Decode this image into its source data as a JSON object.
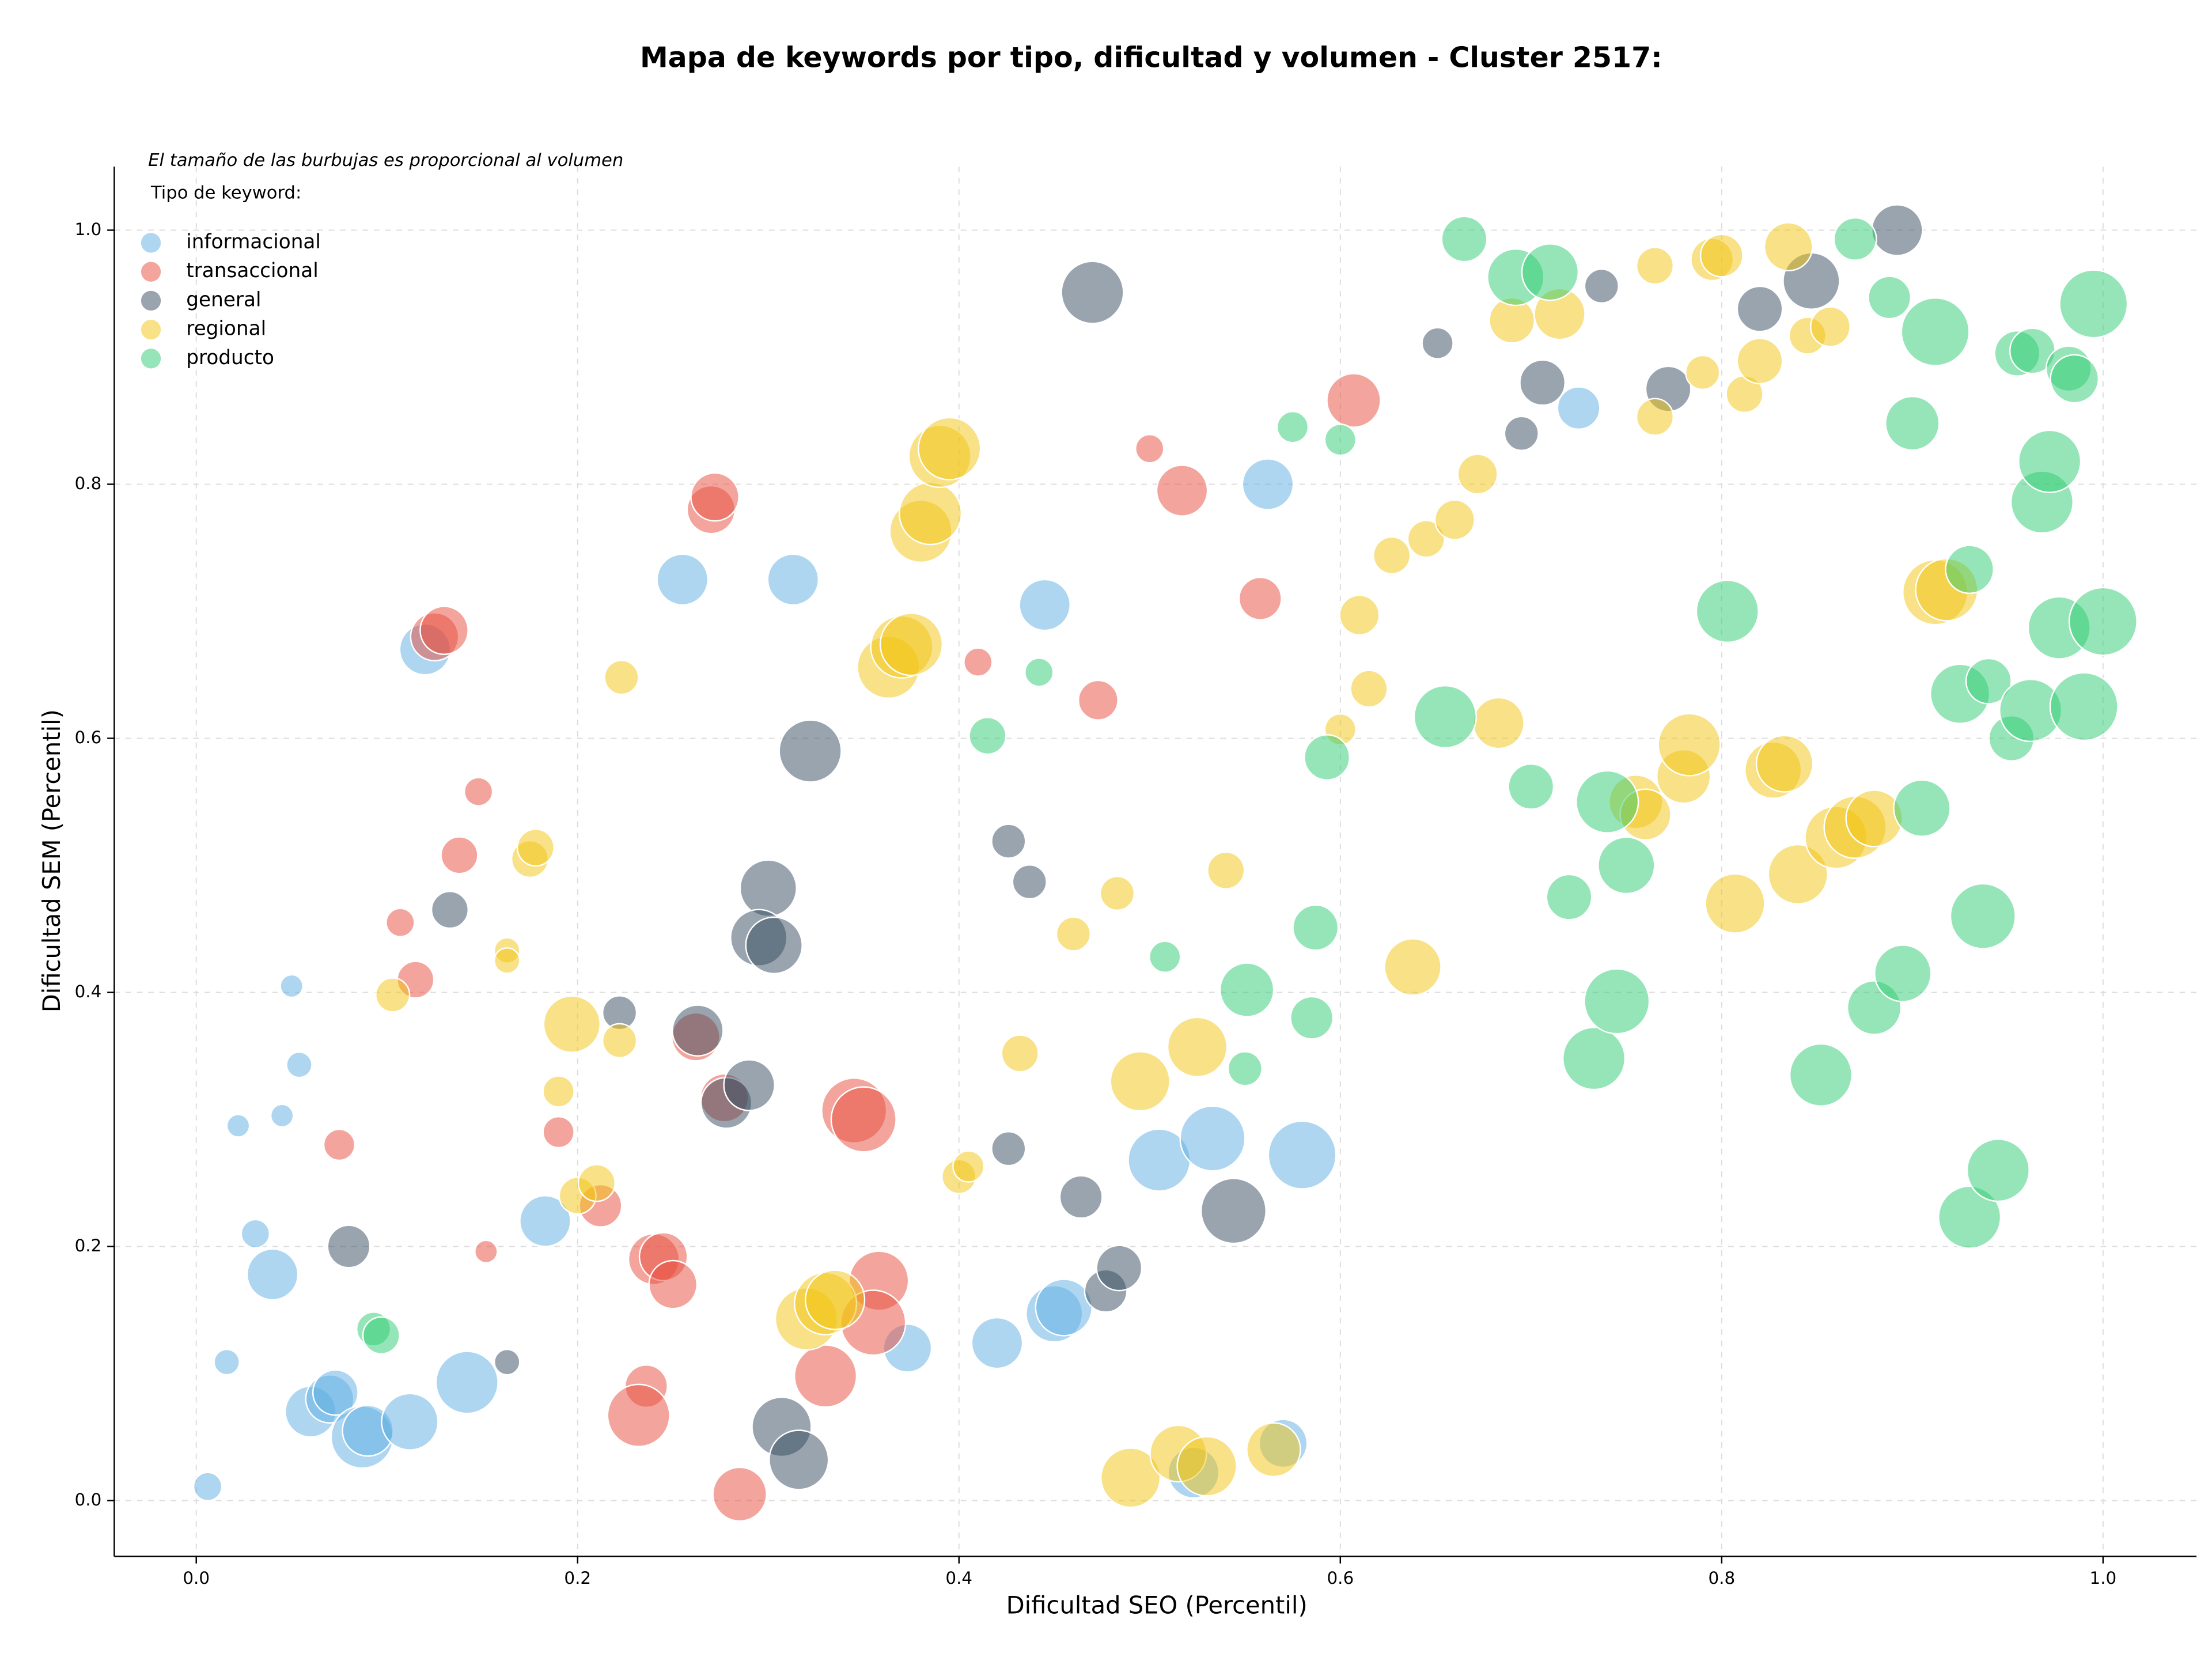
{
  "chart_data": {
    "type": "scatter",
    "title": "Mapa de keywords por tipo, dificultad y volumen - Cluster 2517:",
    "annotation": "El tamaño de las burbujas es proporcional al volumen",
    "legend_title": "Tipo de keyword:",
    "legend": "upper left",
    "x_label": "Dificultad SEO (Percentil)",
    "y_label": "Dificultad SEM (Percentil)",
    "xlim": [
      -0.043,
      1.049
    ],
    "ylim": [
      -0.044,
      1.05
    ],
    "xticks": [
      {
        "value": 0,
        "label": "0.0"
      },
      0.2,
      0.4,
      0.6,
      0.8,
      {
        "value": 1,
        "label": "1.0"
      }
    ],
    "yticks": [
      {
        "value": 0,
        "label": "0.0"
      },
      0.2,
      0.4,
      0.6,
      0.8,
      {
        "value": 1,
        "label": "1.0"
      }
    ],
    "grid": true,
    "series": [
      {
        "name": "informacional",
        "color": "#5dade2",
        "x": [
          0.12,
          0.255,
          0.313,
          0.445,
          0.562,
          0.725,
          0.05,
          0.054,
          0.022,
          0.045,
          0.031,
          0.016,
          0.006,
          0.04,
          0.183,
          0.06,
          0.07,
          0.073,
          0.087,
          0.09,
          0.112,
          0.142,
          0.373,
          0.42,
          0.45,
          0.455,
          0.505,
          0.533,
          0.58,
          0.523,
          0.57
        ],
        "values": [
          0.67,
          0.725,
          0.725,
          0.705,
          0.8,
          0.86,
          0.405,
          0.343,
          0.295,
          0.303,
          0.21,
          0.109,
          0.011,
          0.178,
          0.22,
          0.07,
          0.08,
          0.085,
          0.05,
          0.055,
          0.062,
          0.093,
          0.12,
          0.124,
          0.147,
          0.152,
          0.268,
          0.285,
          0.272,
          0.022,
          0.045
        ],
        "sizes": [
          324,
          324,
          324,
          324,
          324,
          225,
          64,
          81,
          64,
          64,
          100,
          81,
          100,
          324,
          324,
          324,
          289,
          256,
          484,
          324,
          400,
          484,
          289,
          324,
          400,
          400,
          484,
          529,
          576,
          324,
          289
        ]
      },
      {
        "name": "transaccional",
        "color": "#e74c3c",
        "x": [
          0.125,
          0.13,
          0.148,
          0.138,
          0.107,
          0.115,
          0.075,
          0.19,
          0.152,
          0.212,
          0.24,
          0.245,
          0.25,
          0.262,
          0.27,
          0.272,
          0.277,
          0.236,
          0.232,
          0.285,
          0.33,
          0.345,
          0.35,
          0.358,
          0.355,
          0.41,
          0.473,
          0.5,
          0.517,
          0.558,
          0.607
        ],
        "values": [
          0.68,
          0.685,
          0.558,
          0.508,
          0.455,
          0.41,
          0.28,
          0.29,
          0.196,
          0.232,
          0.19,
          0.192,
          0.17,
          0.365,
          0.78,
          0.79,
          0.317,
          0.09,
          0.067,
          0.005,
          0.098,
          0.307,
          0.3,
          0.173,
          0.14,
          0.66,
          0.63,
          0.828,
          0.795,
          0.71,
          0.866
        ],
        "sizes": [
          289,
          289,
          100,
          169,
          100,
          169,
          121,
          121,
          64,
          225,
          324,
          289,
          289,
          289,
          289,
          289,
          289,
          225,
          484,
          361,
          484,
          529,
          529,
          441,
          529,
          100,
          196,
          100,
          324,
          225,
          361
        ]
      },
      {
        "name": "general",
        "color": "#34495e",
        "x": [
          0.08,
          0.163,
          0.133,
          0.222,
          0.263,
          0.278,
          0.29,
          0.3,
          0.295,
          0.303,
          0.322,
          0.307,
          0.316,
          0.426,
          0.437,
          0.426,
          0.464,
          0.477,
          0.484,
          0.47,
          0.544,
          0.651,
          0.695,
          0.706,
          0.737,
          0.772,
          0.82,
          0.847,
          0.892
        ],
        "values": [
          0.2,
          0.109,
          0.465,
          0.384,
          0.37,
          0.313,
          0.327,
          0.482,
          0.443,
          0.437,
          0.59,
          0.058,
          0.032,
          0.519,
          0.487,
          0.277,
          0.239,
          0.165,
          0.183,
          0.951,
          0.228,
          0.911,
          0.84,
          0.88,
          0.956,
          0.875,
          0.938,
          0.96,
          1.0
        ],
        "sizes": [
          225,
          81,
          169,
          144,
          324,
          324,
          324,
          400,
          400,
          400,
          484,
          441,
          441,
          144,
          144,
          144,
          225,
          225,
          256,
          484,
          529,
          121,
          144,
          256,
          144,
          256,
          256,
          400,
          324
        ]
      },
      {
        "name": "regional",
        "color": "#f1c40f",
        "x": [
          0.103,
          0.163,
          0.163,
          0.175,
          0.178,
          0.19,
          0.197,
          0.2,
          0.21,
          0.222,
          0.223,
          0.32,
          0.33,
          0.335,
          0.363,
          0.37,
          0.375,
          0.38,
          0.385,
          0.39,
          0.395,
          0.4,
          0.405,
          0.432,
          0.46,
          0.483,
          0.495,
          0.49,
          0.515,
          0.53,
          0.525,
          0.54,
          0.565,
          0.6,
          0.61,
          0.615,
          0.627,
          0.645,
          0.66,
          0.672,
          0.638,
          0.683,
          0.69,
          0.715,
          0.755,
          0.76,
          0.765,
          0.765,
          0.78,
          0.783,
          0.79,
          0.795,
          0.8,
          0.807,
          0.812,
          0.82,
          0.827,
          0.833,
          0.835,
          0.84,
          0.845,
          0.857,
          0.86,
          0.87,
          0.88,
          0.912,
          0.918
        ],
        "values": [
          0.398,
          0.433,
          0.425,
          0.505,
          0.514,
          0.322,
          0.375,
          0.24,
          0.25,
          0.362,
          0.648,
          0.143,
          0.155,
          0.158,
          0.656,
          0.672,
          0.674,
          0.763,
          0.777,
          0.822,
          0.828,
          0.255,
          0.263,
          0.352,
          0.446,
          0.478,
          0.33,
          0.018,
          0.037,
          0.027,
          0.357,
          0.496,
          0.04,
          0.607,
          0.697,
          0.639,
          0.744,
          0.757,
          0.772,
          0.808,
          0.42,
          0.612,
          0.929,
          0.934,
          0.55,
          0.54,
          0.972,
          0.853,
          0.57,
          0.595,
          0.888,
          0.977,
          0.98,
          0.47,
          0.871,
          0.897,
          0.575,
          0.58,
          0.987,
          0.493,
          0.917,
          0.924,
          0.522,
          0.53,
          0.537,
          0.715,
          0.717
        ],
        "sizes": [
          144,
          81,
          81,
          169,
          169,
          121,
          400,
          169,
          169,
          144,
          144,
          484,
          484,
          441,
          484,
          484,
          484,
          484,
          484,
          484,
          484,
          144,
          121,
          169,
          144,
          144,
          441,
          441,
          400,
          441,
          441,
          169,
          361,
          121,
          196,
          169,
          169,
          169,
          196,
          196,
          400,
          324,
          256,
          324,
          361,
          324,
          169,
          169,
          361,
          484,
          144,
          225,
          225,
          441,
          169,
          256,
          400,
          400,
          289,
          441,
          169,
          196,
          484,
          484,
          400,
          529,
          484
        ]
      },
      {
        "name": "producto",
        "color": "#2ecc71",
        "x": [
          0.093,
          0.097,
          0.415,
          0.442,
          0.508,
          0.55,
          0.551,
          0.575,
          0.585,
          0.587,
          0.593,
          0.6,
          0.655,
          0.665,
          0.692,
          0.71,
          0.7,
          0.72,
          0.733,
          0.74,
          0.745,
          0.75,
          0.803,
          0.852,
          0.87,
          0.88,
          0.888,
          0.895,
          0.9,
          0.905,
          0.912,
          0.925,
          0.93,
          0.93,
          0.937,
          0.94,
          0.945,
          0.952,
          0.955,
          0.962,
          0.963,
          0.968,
          0.972,
          0.977,
          0.982,
          0.985,
          0.99,
          0.995,
          1.0
        ],
        "values": [
          0.135,
          0.13,
          0.602,
          0.652,
          0.428,
          0.34,
          0.402,
          0.845,
          0.38,
          0.451,
          0.585,
          0.835,
          0.617,
          0.993,
          0.963,
          0.967,
          0.562,
          0.475,
          0.348,
          0.55,
          0.393,
          0.5,
          0.7,
          0.335,
          0.993,
          0.388,
          0.947,
          0.415,
          0.848,
          0.545,
          0.92,
          0.635,
          0.733,
          0.223,
          0.46,
          0.645,
          0.26,
          0.6,
          0.903,
          0.622,
          0.905,
          0.786,
          0.818,
          0.687,
          0.891,
          0.883,
          0.625,
          0.942,
          0.692
        ],
        "sizes": [
          144,
          169,
          169,
          100,
          121,
          144,
          361,
          121,
          225,
          256,
          256,
          121,
          484,
          256,
          400,
          400,
          256,
          256,
          484,
          484,
          529,
          400,
          484,
          484,
          225,
          361,
          225,
          400,
          361,
          400,
          576,
          441,
          289,
          484,
          529,
          256,
          484,
          256,
          256,
          484,
          256,
          484,
          484,
          484,
          256,
          289,
          576,
          576,
          576
        ]
      }
    ]
  }
}
